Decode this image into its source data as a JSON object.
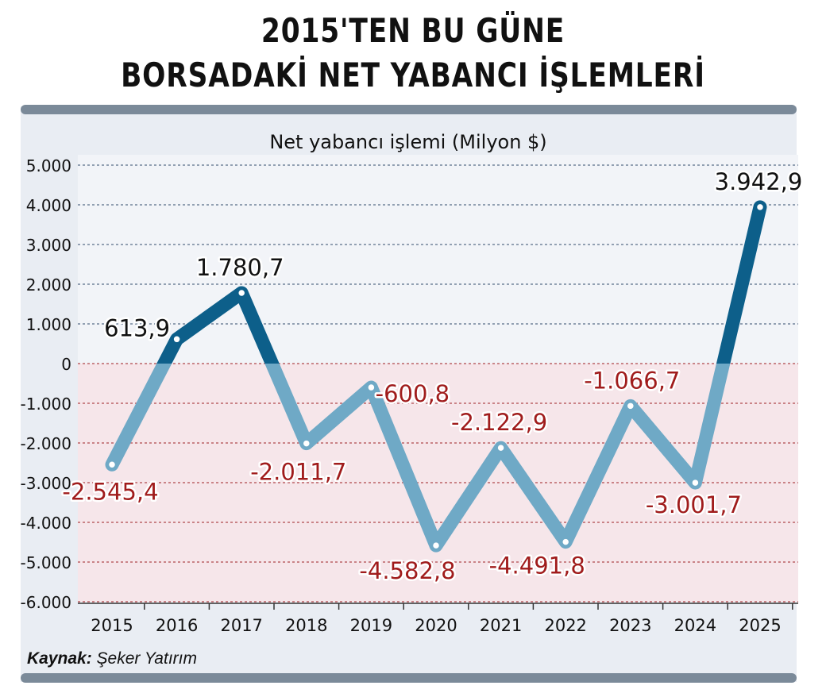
{
  "title": {
    "line1": "2015'TEN BU GÜNE",
    "line2": "BORSADAKİ NET YABANCI İŞLEMLERİ"
  },
  "source": {
    "label": "Kaynak:",
    "text": "Şeker Yatırım"
  },
  "colors": {
    "positive_line": "#0d5f8a",
    "negative_line": "#6fa9c6",
    "positive_label": "#111111",
    "negative_label": "#a01c1c",
    "panel_border": "#7b8a99",
    "panel_bg": "#e9edf3"
  },
  "chart_data": {
    "type": "line",
    "title": "Net yabancı işlemi (Milyon $)",
    "x": [
      "2015",
      "2016",
      "2017",
      "2018",
      "2019",
      "2020",
      "2021",
      "2022",
      "2023",
      "2024",
      "2025"
    ],
    "values": [
      -2545.4,
      613.9,
      1780.7,
      -2011.7,
      -600.8,
      -4582.8,
      -2122.9,
      -4491.8,
      -1066.7,
      -3001.7,
      3942.9
    ],
    "value_labels": [
      "-2.545,4",
      "613,9",
      "1.780,7",
      "-2.011,7",
      "-600,8",
      "-4.582,8",
      "-2.122,9",
      "-4.491,8",
      "-1.066,7",
      "-3.001,7",
      "3.942,9"
    ],
    "ylim": [
      -6000,
      5000
    ],
    "yticks": [
      5000,
      4000,
      3000,
      2000,
      1000,
      0,
      -1000,
      -2000,
      -3000,
      -4000,
      -5000,
      -6000
    ],
    "ytick_labels": [
      "5.000",
      "4.000",
      "3.000",
      "2.000",
      "1.000",
      "0",
      "-1.000",
      "-2.000",
      "-3.000",
      "-4.000",
      "-5.000",
      "-6.000"
    ],
    "grid": true,
    "legend": "none"
  }
}
